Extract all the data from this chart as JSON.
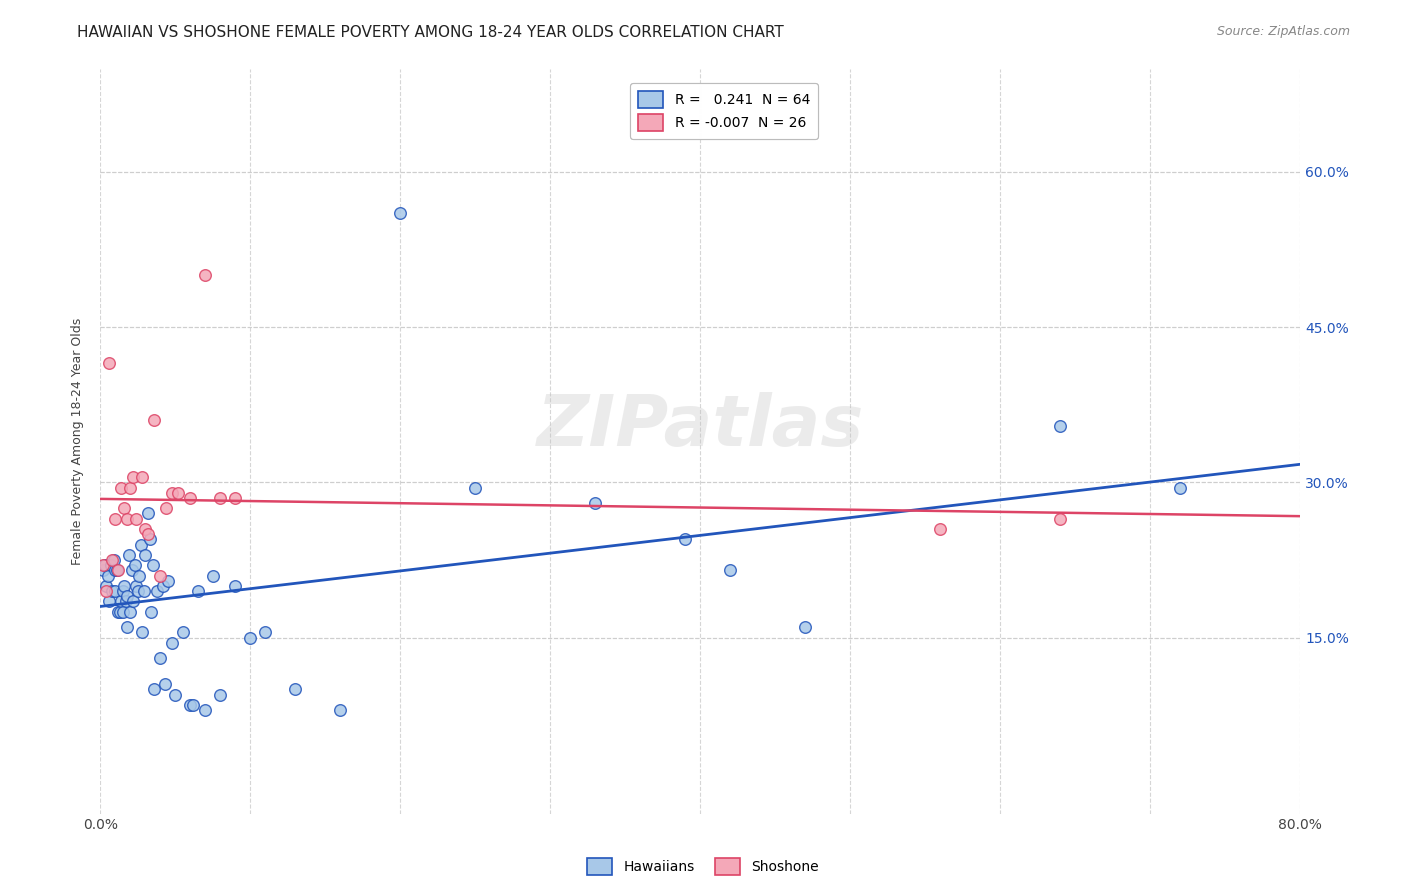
{
  "title": "HAWAIIAN VS SHOSHONE FEMALE POVERTY AMONG 18-24 YEAR OLDS CORRELATION CHART",
  "source": "Source: ZipAtlas.com",
  "ylabel": "Female Poverty Among 18-24 Year Olds",
  "ytick_labels": [
    "15.0%",
    "30.0%",
    "45.0%",
    "60.0%"
  ],
  "ytick_values": [
    0.15,
    0.3,
    0.45,
    0.6
  ],
  "xlim": [
    0.0,
    0.8
  ],
  "ylim": [
    -0.02,
    0.7
  ],
  "legend_label1": "R =   0.241  N = 64",
  "legend_label2": "R = -0.007  N = 26",
  "legend_entry1": "Hawaiians",
  "legend_entry2": "Shoshone",
  "hawaiian_color": "#a8c8e8",
  "shoshone_color": "#f4a8b8",
  "hawaiian_line_color": "#2255bb",
  "shoshone_line_color": "#dd4466",
  "background_color": "#ffffff",
  "grid_color": "#cccccc",
  "watermark": "ZIPatlas",
  "hawaiian_x": [
    0.002,
    0.003,
    0.004,
    0.005,
    0.006,
    0.007,
    0.008,
    0.009,
    0.01,
    0.01,
    0.011,
    0.012,
    0.013,
    0.014,
    0.015,
    0.015,
    0.016,
    0.017,
    0.018,
    0.018,
    0.019,
    0.02,
    0.021,
    0.022,
    0.023,
    0.024,
    0.025,
    0.026,
    0.027,
    0.028,
    0.029,
    0.03,
    0.032,
    0.033,
    0.034,
    0.035,
    0.036,
    0.038,
    0.04,
    0.042,
    0.043,
    0.045,
    0.048,
    0.05,
    0.055,
    0.06,
    0.062,
    0.065,
    0.07,
    0.075,
    0.08,
    0.09,
    0.1,
    0.11,
    0.13,
    0.16,
    0.2,
    0.25,
    0.33,
    0.39,
    0.42,
    0.47,
    0.64,
    0.72
  ],
  "hawaiian_y": [
    0.215,
    0.22,
    0.2,
    0.21,
    0.185,
    0.22,
    0.195,
    0.225,
    0.215,
    0.195,
    0.215,
    0.175,
    0.175,
    0.185,
    0.195,
    0.175,
    0.2,
    0.185,
    0.16,
    0.19,
    0.23,
    0.175,
    0.215,
    0.185,
    0.22,
    0.2,
    0.195,
    0.21,
    0.24,
    0.155,
    0.195,
    0.23,
    0.27,
    0.245,
    0.175,
    0.22,
    0.1,
    0.195,
    0.13,
    0.2,
    0.105,
    0.205,
    0.145,
    0.095,
    0.155,
    0.085,
    0.085,
    0.195,
    0.08,
    0.21,
    0.095,
    0.2,
    0.15,
    0.155,
    0.1,
    0.08,
    0.56,
    0.295,
    0.28,
    0.245,
    0.215,
    0.16,
    0.355,
    0.295
  ],
  "shoshone_x": [
    0.002,
    0.004,
    0.006,
    0.008,
    0.01,
    0.012,
    0.014,
    0.016,
    0.018,
    0.02,
    0.022,
    0.024,
    0.028,
    0.03,
    0.032,
    0.036,
    0.04,
    0.044,
    0.048,
    0.052,
    0.06,
    0.07,
    0.08,
    0.09,
    0.56,
    0.64
  ],
  "shoshone_y": [
    0.22,
    0.195,
    0.415,
    0.225,
    0.265,
    0.215,
    0.295,
    0.275,
    0.265,
    0.295,
    0.305,
    0.265,
    0.305,
    0.255,
    0.25,
    0.36,
    0.21,
    0.275,
    0.29,
    0.29,
    0.285,
    0.5,
    0.285,
    0.285,
    0.255,
    0.265
  ],
  "title_fontsize": 11,
  "source_fontsize": 9,
  "axis_label_fontsize": 9,
  "tick_fontsize": 10,
  "legend_fontsize": 10,
  "marker_size": 70
}
